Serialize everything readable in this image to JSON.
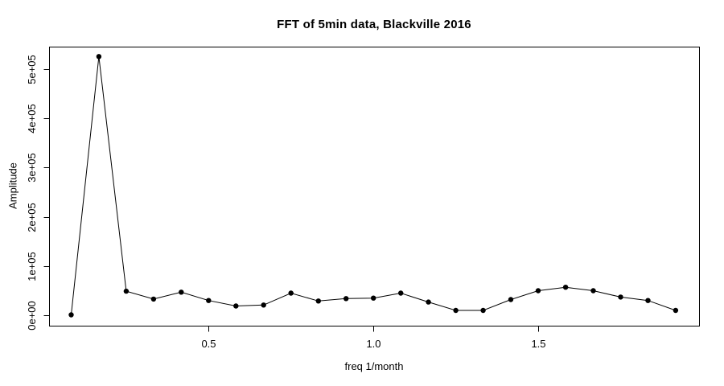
{
  "chart_data": {
    "type": "line",
    "title": "FFT of 5min data, Blackville 2016",
    "xlabel": "freq 1/month",
    "ylabel": "Amplitude",
    "x": [
      0.083,
      0.167,
      0.25,
      0.333,
      0.417,
      0.5,
      0.583,
      0.667,
      0.75,
      0.833,
      0.917,
      1.0,
      1.083,
      1.167,
      1.25,
      1.333,
      1.417,
      1.5,
      1.583,
      1.667,
      1.75,
      1.833,
      1.917
    ],
    "values": [
      1000,
      525000,
      49000,
      33000,
      47000,
      30000,
      19000,
      21000,
      45000,
      29000,
      34000,
      35000,
      45000,
      27000,
      10000,
      10000,
      32000,
      50000,
      57000,
      50000,
      37000,
      30000,
      10000
    ],
    "xlim": [
      0.016,
      1.988
    ],
    "ylim": [
      -21000,
      545000
    ],
    "xticks": {
      "values": [
        0.5,
        1.0,
        1.5
      ],
      "labels": [
        "0.5",
        "1.0",
        "1.5"
      ]
    },
    "yticks": {
      "values": [
        0,
        100000,
        200000,
        300000,
        400000,
        500000
      ],
      "labels": [
        "0e+00",
        "1e+05",
        "2e+05",
        "3e+05",
        "4e+05",
        "5e+05"
      ]
    },
    "grid": false,
    "legend_position": "none",
    "marker": "filled-circle",
    "foreground": "#000000",
    "background": "#ffffff"
  }
}
